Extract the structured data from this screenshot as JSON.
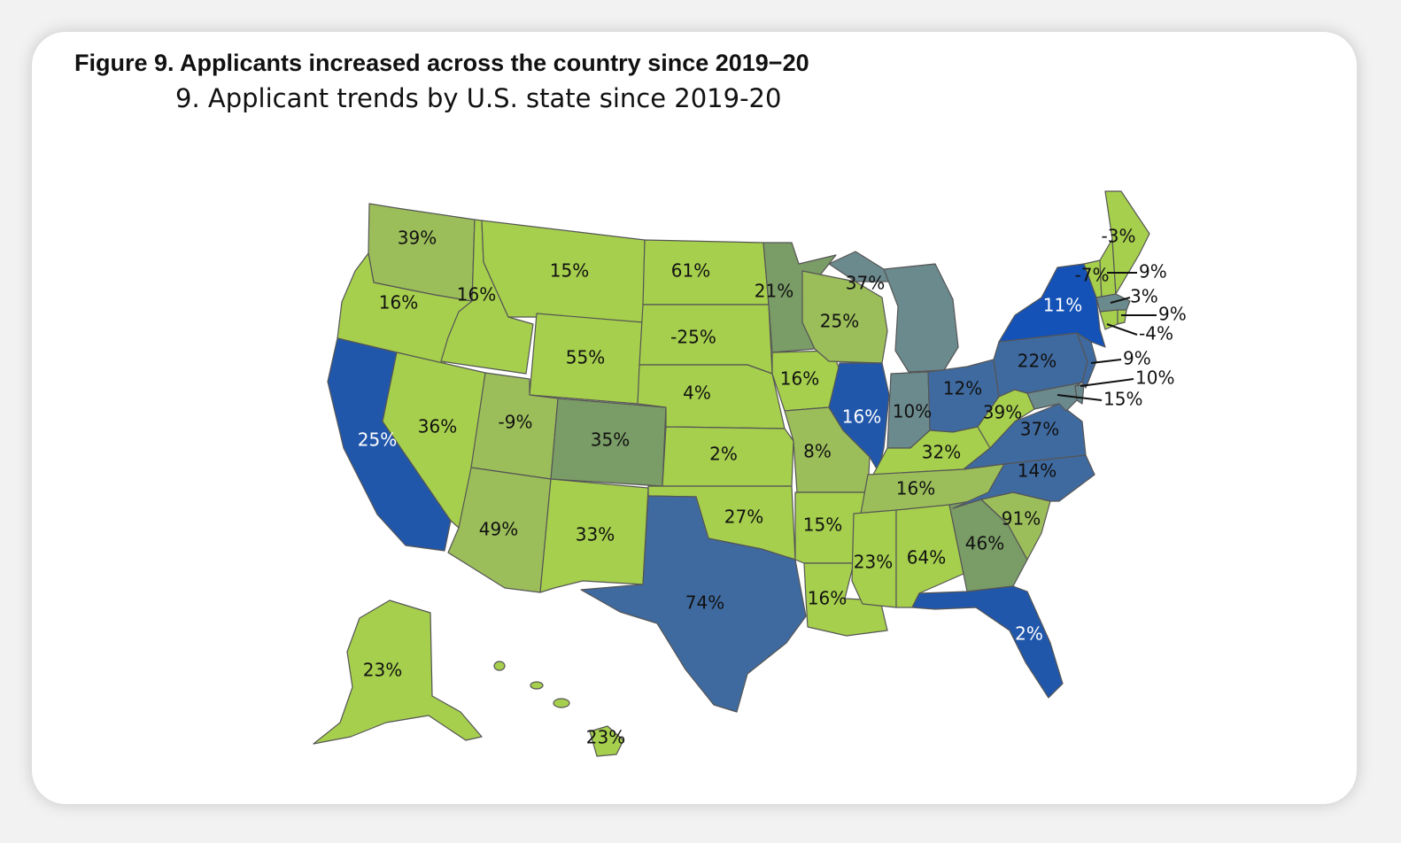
{
  "title": "Figure 9. Applicants increased across the country since 2019−20",
  "subtitle": "9. Applicant trends by U.S. state since 2019-20",
  "colors": {
    "light_green": "#a6cf4d",
    "mid_green": "#9cbe5a",
    "olive": "#7a9c66",
    "slate": "#6b8a8e",
    "steel_blue": "#3f6aa0",
    "blue": "#2157ab",
    "bright_blue": "#1452b8"
  },
  "states": [
    {
      "code": "WA",
      "value": "39%"
    },
    {
      "code": "OR",
      "value": "16%"
    },
    {
      "code": "CA",
      "value": "25%"
    },
    {
      "code": "ID",
      "value": "16%"
    },
    {
      "code": "NV",
      "value": "36%"
    },
    {
      "code": "MT",
      "value": "15%"
    },
    {
      "code": "WY",
      "value": "55%"
    },
    {
      "code": "UT",
      "value": "-9%"
    },
    {
      "code": "AZ",
      "value": "49%"
    },
    {
      "code": "CO",
      "value": "35%"
    },
    {
      "code": "NM",
      "value": "33%"
    },
    {
      "code": "ND",
      "value": "61%"
    },
    {
      "code": "SD",
      "value": "-25%"
    },
    {
      "code": "NE",
      "value": "4%"
    },
    {
      "code": "KS",
      "value": "2%"
    },
    {
      "code": "OK",
      "value": "27%"
    },
    {
      "code": "TX",
      "value": "74%"
    },
    {
      "code": "MN",
      "value": "21%"
    },
    {
      "code": "IA",
      "value": "16%"
    },
    {
      "code": "MO",
      "value": "8%"
    },
    {
      "code": "AR",
      "value": "15%"
    },
    {
      "code": "LA",
      "value": "16%"
    },
    {
      "code": "WI",
      "value": "25%"
    },
    {
      "code": "UP",
      "value": "37%"
    },
    {
      "code": "IL",
      "value": "16%"
    },
    {
      "code": "MI",
      "value": ""
    },
    {
      "code": "IN",
      "value": "10%"
    },
    {
      "code": "OH",
      "value": "12%"
    },
    {
      "code": "KY",
      "value": "32%"
    },
    {
      "code": "TN",
      "value": "16%"
    },
    {
      "code": "MS",
      "value": "23%"
    },
    {
      "code": "AL",
      "value": "64%"
    },
    {
      "code": "GA",
      "value": "46%"
    },
    {
      "code": "FL",
      "value": "2%"
    },
    {
      "code": "SC",
      "value": "91%"
    },
    {
      "code": "NC",
      "value": "14%"
    },
    {
      "code": "VA",
      "value": "37%"
    },
    {
      "code": "WV",
      "value": "39%"
    },
    {
      "code": "PA",
      "value": "22%"
    },
    {
      "code": "NY",
      "value": "11%"
    },
    {
      "code": "VT",
      "value": "-7%"
    },
    {
      "code": "ME",
      "value": "-3%"
    },
    {
      "code": "AK",
      "value": "23%"
    },
    {
      "code": "HI",
      "value": "23%"
    }
  ],
  "callouts": [
    {
      "code": "NH",
      "value": "9%"
    },
    {
      "code": "MA",
      "value": "3%"
    },
    {
      "code": "RI",
      "value": "9%"
    },
    {
      "code": "CT",
      "value": "-4%"
    },
    {
      "code": "NJ",
      "value": "9%"
    },
    {
      "code": "DE",
      "value": "10%"
    },
    {
      "code": "MD",
      "value": "15%"
    }
  ]
}
